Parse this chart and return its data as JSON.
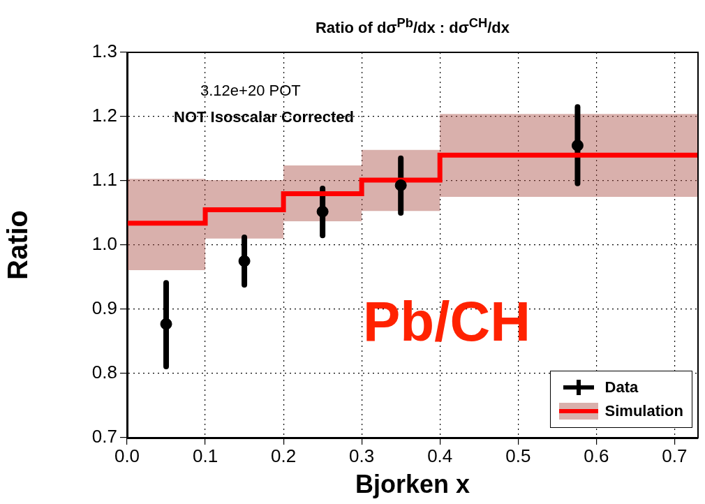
{
  "chart_data": {
    "type": "scatter",
    "title": "Ratio of dσ$^{Pb}$/dx : dσ$^{CH}$/dx",
    "xlabel": "Bjorken x",
    "ylabel": "Ratio",
    "xlim": [
      0,
      0.73
    ],
    "ylim": [
      0.7,
      1.3
    ],
    "xticks": [
      {
        "value": 0,
        "label": "0.0"
      },
      0.1,
      0.2,
      0.3,
      0.4,
      0.5,
      0.6,
      0.7
    ],
    "yticks": [
      0.7,
      0.8,
      0.9,
      {
        "value": 1,
        "label": "1.0"
      },
      1.1,
      1.2,
      1.3
    ],
    "grid": true,
    "legend": "bottom right",
    "annotations": [
      "3.12e+20 POT",
      "NOT Isoscalar Corrected",
      "Pb/CH"
    ],
    "series": [
      {
        "name": "Data",
        "marker": "circle",
        "color": "#000000",
        "x": [
          0.05,
          0.15,
          0.25,
          0.35,
          0.576
        ],
        "values": [
          0.877,
          0.975,
          1.052,
          1.093,
          1.155
        ],
        "errors": [
          [
            0.811,
            0.941
          ],
          [
            0.938,
            1.012
          ],
          [
            1.015,
            1.088
          ],
          [
            1.05,
            1.135
          ],
          [
            1.096,
            1.215
          ]
        ]
      },
      {
        "name": "Simulation",
        "type": "step",
        "marker": "none",
        "color": "#ff0000",
        "x": [
          0,
          0.1,
          0.2,
          0.3,
          0.4,
          0.73
        ],
        "values": [
          1.034,
          1.055,
          1.08,
          1.101,
          1.14,
          1.14
        ],
        "lower": [
          0.961,
          1.01,
          1.037,
          1.053,
          1.075,
          1.075
        ],
        "upper": [
          1.103,
          1.101,
          1.124,
          1.148,
          1.204,
          1.204
        ]
      }
    ]
  }
}
